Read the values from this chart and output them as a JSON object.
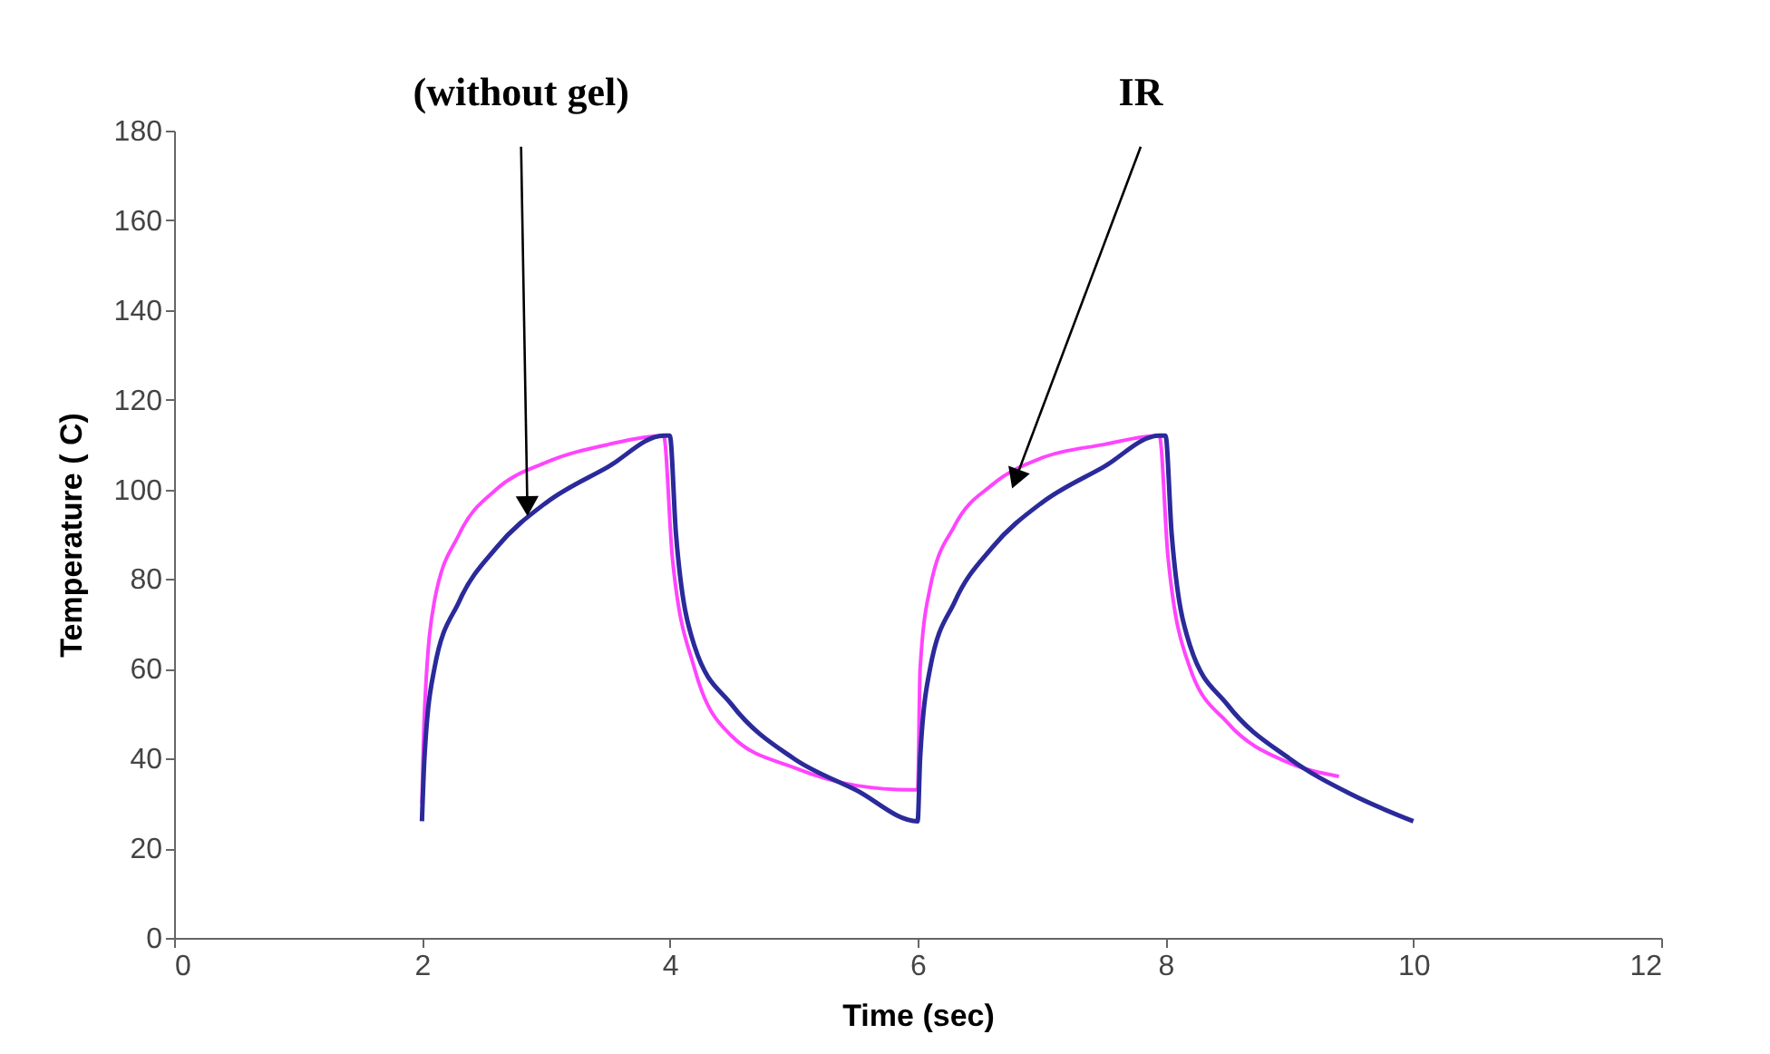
{
  "chart_data": {
    "type": "line",
    "xlabel": "Time (sec)",
    "ylabel": "Temperature ( C)",
    "xlim": [
      0,
      12
    ],
    "xticks": [
      0,
      2,
      4,
      6,
      8,
      10,
      12
    ],
    "ylim": [
      0,
      180
    ],
    "yticks": [
      0,
      20,
      40,
      60,
      80,
      100,
      120,
      140,
      160,
      180
    ],
    "grid": false,
    "marker": "none",
    "line_style": "solid",
    "series": [
      {
        "color": "#ff44ff",
        "x": [
          2,
          2.02,
          2.1,
          2.3,
          2.6,
          3,
          3.5,
          3.95,
          4.02,
          4.2,
          4.5,
          5,
          5.5,
          5.95,
          6,
          6.02,
          6.1,
          6.3,
          6.6,
          7,
          7.5,
          7.95,
          8.02,
          8.2,
          8.5,
          9,
          9.4
        ],
        "values": [
          30,
          50,
          75,
          90,
          100,
          106,
          110,
          112,
          85,
          60,
          45,
          38,
          34,
          33,
          33,
          60,
          78,
          92,
          101,
          107,
          110,
          112,
          85,
          60,
          48,
          39,
          36
        ]
      },
      {
        "color": "#2a2a9a",
        "x": [
          2,
          2.02,
          2.1,
          2.3,
          2.6,
          3,
          3.5,
          3.95,
          4,
          4.05,
          4.2,
          4.5,
          5,
          5.5,
          6,
          6.02,
          6.1,
          6.3,
          6.6,
          7,
          7.5,
          7.95,
          8,
          8.05,
          8.2,
          8.5,
          9,
          9.5,
          10
        ],
        "values": [
          26,
          40,
          60,
          75,
          87,
          97,
          105,
          112,
          112,
          90,
          65,
          52,
          40,
          33,
          26,
          40,
          60,
          75,
          87,
          97,
          105,
          112,
          112,
          90,
          65,
          52,
          40,
          32,
          26
        ]
      }
    ],
    "annotations": [
      {
        "text": "(without gel)",
        "x": 2.85,
        "y": 97
      },
      {
        "text": "IR",
        "x": 6.8,
        "y": 103
      }
    ]
  }
}
